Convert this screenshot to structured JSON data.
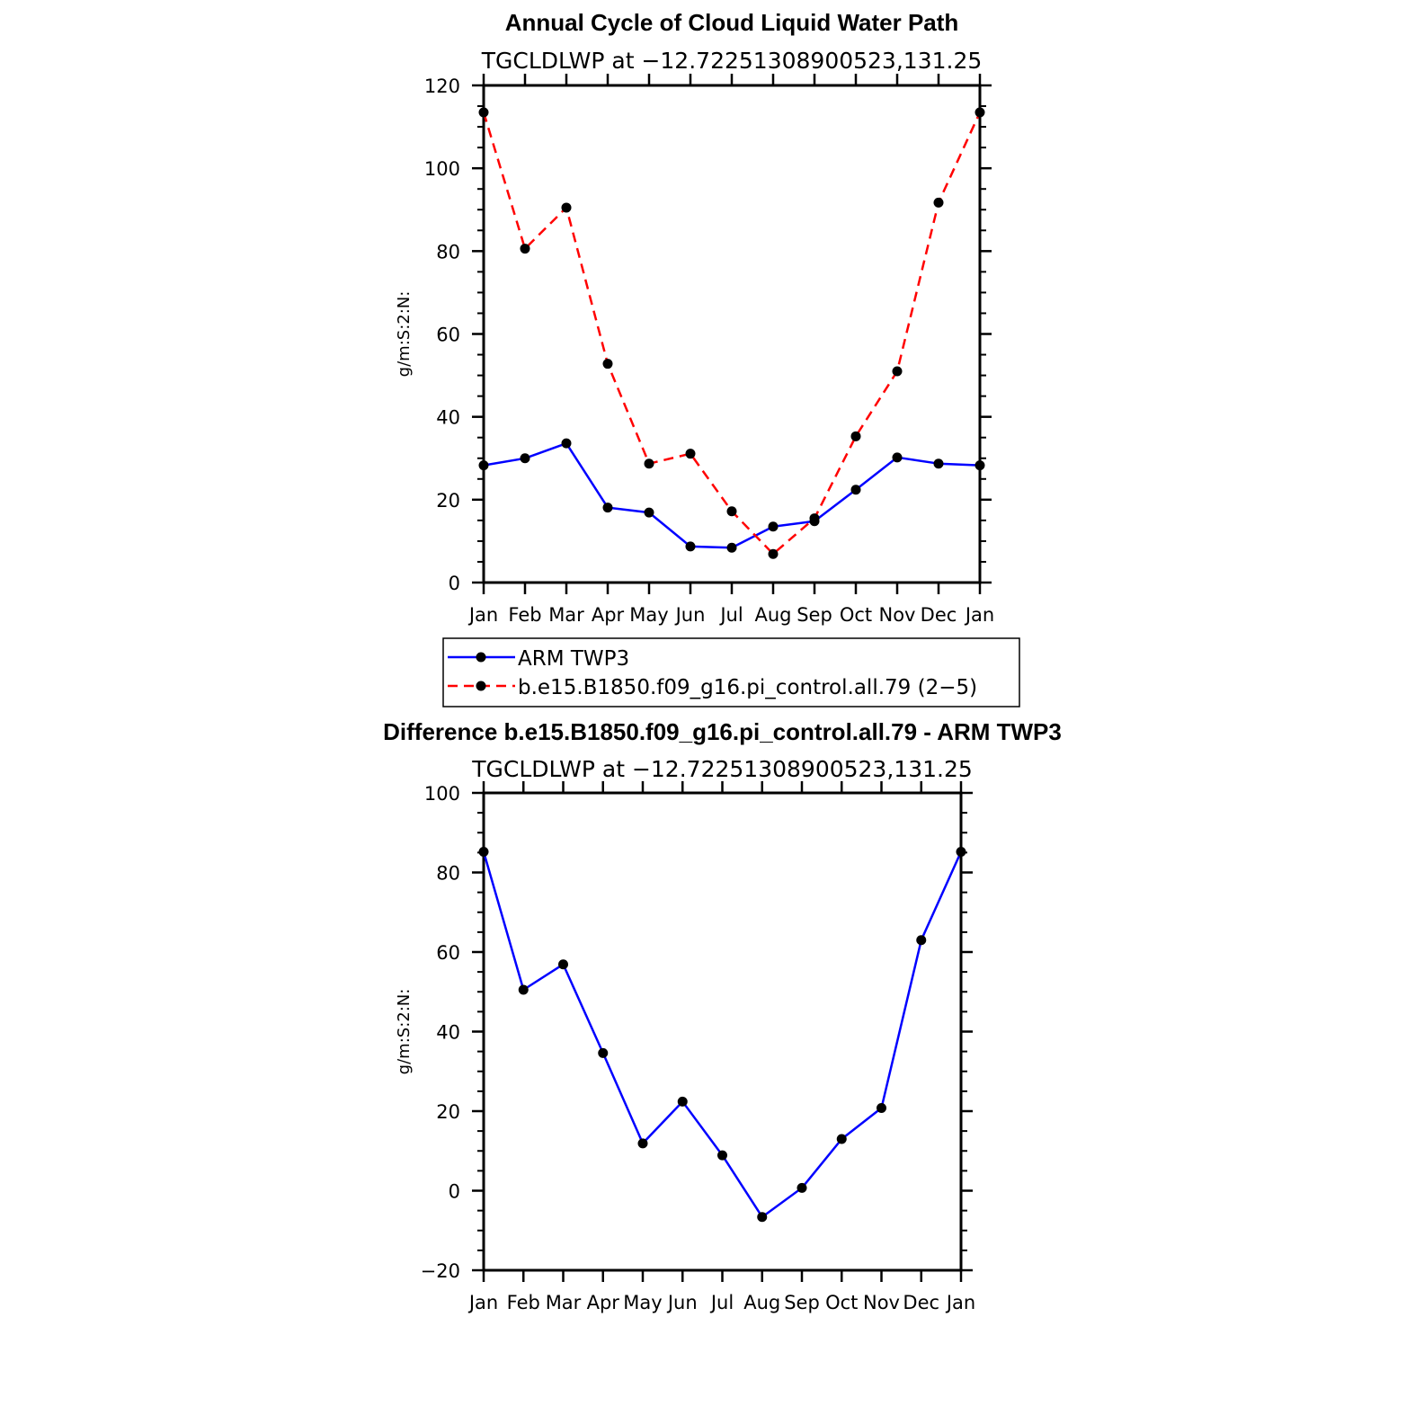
{
  "chart_data": [
    {
      "type": "line",
      "title": "Annual Cycle of Cloud Liquid Water Path",
      "subtitle": "TGCLDLWP at −12.72251308900523,131.25",
      "xlabel": "",
      "ylabel": "g/m:S:2:N:",
      "categories": [
        "Jan",
        "Feb",
        "Mar",
        "Apr",
        "May",
        "Jun",
        "Jul",
        "Aug",
        "Sep",
        "Oct",
        "Nov",
        "Dec",
        "Jan"
      ],
      "ylim": [
        0,
        120
      ],
      "yticks": [
        "0",
        "20",
        "40",
        "60",
        "80",
        "100",
        "120"
      ],
      "series": [
        {
          "name": "ARM TWP3",
          "color": "#0000ff",
          "dash": false,
          "values": [
            28.3,
            30.0,
            33.6,
            18.1,
            16.9,
            8.7,
            8.4,
            13.5,
            14.8,
            22.4,
            30.2,
            28.7,
            28.3
          ]
        },
        {
          "name": "b.e15.B1850.f09_g16.pi_control.all.79 (2−5)",
          "color": "#ff0000",
          "dash": true,
          "values": [
            113.5,
            80.6,
            90.5,
            52.8,
            28.7,
            31.1,
            17.2,
            6.9,
            15.5,
            35.3,
            51.0,
            91.7,
            113.5
          ]
        }
      ],
      "legend": "below"
    },
    {
      "type": "line",
      "title": "Difference b.e15.B1850.f09_g16.pi_control.all.79 - ARM TWP3",
      "subtitle": "TGCLDLWP at −12.72251308900523,131.25",
      "xlabel": "",
      "ylabel": "g/m:S:2:N:",
      "categories": [
        "Jan",
        "Feb",
        "Mar",
        "Apr",
        "May",
        "Jun",
        "Jul",
        "Aug",
        "Sep",
        "Oct",
        "Nov",
        "Dec",
        "Jan"
      ],
      "ylim": [
        -20,
        100
      ],
      "yticks": [
        "−20",
        "0",
        "20",
        "40",
        "60",
        "80",
        "100"
      ],
      "series": [
        {
          "color": "#0000ff",
          "dash": false,
          "values": [
            85.2,
            50.5,
            56.9,
            34.6,
            11.9,
            22.4,
            8.9,
            -6.6,
            0.7,
            13.0,
            20.8,
            63.0,
            85.2
          ]
        }
      ]
    }
  ]
}
